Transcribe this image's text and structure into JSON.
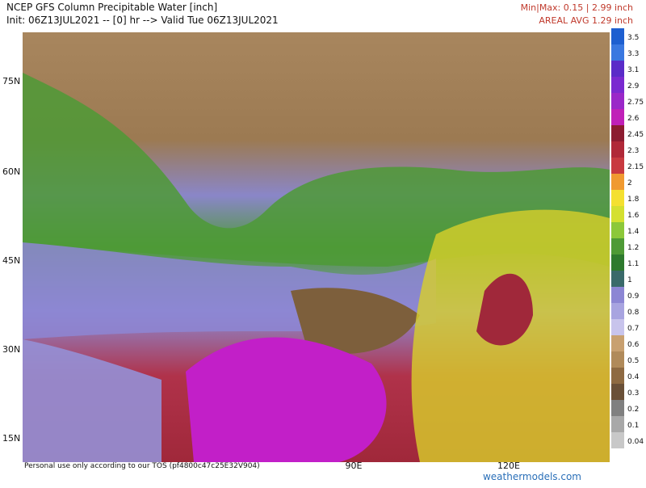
{
  "header": {
    "title": "NCEP GFS Column Precipitable Water [inch]",
    "subtitle": "Init: 06Z13JUL2021 -- [0] hr --> Valid Tue 06Z13JUL2021",
    "minmax": "Min|Max: 0.15 | 2.99 inch",
    "areal_avg": "AREAL AVG 1.29 inch"
  },
  "map": {
    "lat_labels": [
      "75N",
      "60N",
      "45N",
      "30N",
      "15N"
    ],
    "lon_labels": [
      "90E",
      "120E"
    ]
  },
  "colorbar": {
    "labels": [
      "3.5",
      "3.3",
      "3.1",
      "2.9",
      "2.75",
      "2.6",
      "2.45",
      "2.3",
      "2.15",
      "2",
      "1.8",
      "1.6",
      "1.4",
      "1.2",
      "1.1",
      "1",
      "0.9",
      "0.8",
      "0.7",
      "0.6",
      "0.5",
      "0.4",
      "0.3",
      "0.2",
      "0.1",
      "0.04"
    ]
  },
  "footer": {
    "notice": "Personal use only according to our TOS (pf4800c47c25E32V904)",
    "site": "weathermodels.com"
  }
}
